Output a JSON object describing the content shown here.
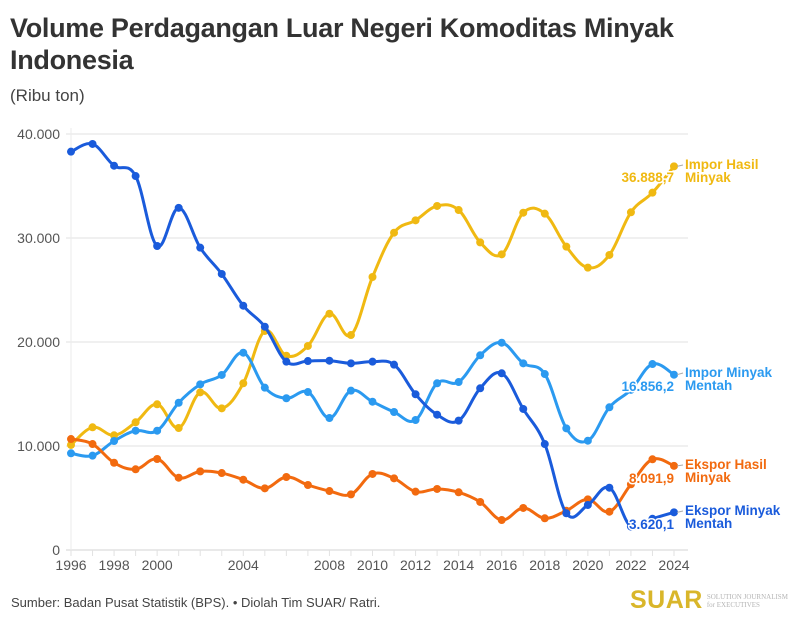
{
  "chart_data": {
    "type": "line",
    "title": "Volume Perdagangan Luar Negeri Komoditas Minyak Indonesia",
    "subtitle": "(Ribu ton)",
    "xlabel": "",
    "ylabel": "",
    "ylim": [
      0,
      40000
    ],
    "xlim": [
      1996,
      2024
    ],
    "grid": true,
    "legend": "right-end labels",
    "y_ticks": [
      {
        "value": 0,
        "label": "0"
      },
      {
        "value": 10000,
        "label": "10.000"
      },
      {
        "value": 20000,
        "label": "20.000"
      },
      {
        "value": 30000,
        "label": "30.000"
      },
      {
        "value": 40000,
        "label": "40.000"
      }
    ],
    "x_tick_years": [
      1996,
      1997,
      1998,
      1999,
      2000,
      2001,
      2002,
      2003,
      2004,
      2005,
      2006,
      2007,
      2008,
      2009,
      2010,
      2011,
      2012,
      2013,
      2014,
      2015,
      2016,
      2017,
      2018,
      2019,
      2020,
      2021,
      2022,
      2023,
      2024
    ],
    "x_tick_labels": [
      {
        "value": 1996,
        "label": "1996"
      },
      {
        "value": 1998,
        "label": "1998"
      },
      {
        "value": 2000,
        "label": "2000"
      },
      {
        "value": 2004,
        "label": "2004"
      },
      {
        "value": 2008,
        "label": "2008"
      },
      {
        "value": 2010,
        "label": "2010"
      },
      {
        "value": 2012,
        "label": "2012"
      },
      {
        "value": 2014,
        "label": "2014"
      },
      {
        "value": 2016,
        "label": "2016"
      },
      {
        "value": 2018,
        "label": "2018"
      },
      {
        "value": 2020,
        "label": "2020"
      },
      {
        "value": 2022,
        "label": "2022"
      },
      {
        "value": 2024,
        "label": "2024"
      }
    ],
    "x": [
      1996,
      1997,
      1998,
      1999,
      2000,
      2001,
      2002,
      2003,
      2004,
      2005,
      2006,
      2007,
      2008,
      2009,
      2010,
      2011,
      2012,
      2013,
      2014,
      2015,
      2016,
      2017,
      2018,
      2019,
      2020,
      2021,
      2022,
      2023,
      2024
    ],
    "series": [
      {
        "name": "Impor Hasil Minyak",
        "label_lines": [
          "Impor Hasil",
          "Minyak"
        ],
        "color": "#f0b912",
        "last_value_label": "36.888,7",
        "values": [
          10100,
          11800,
          11030,
          12280,
          14010,
          11730,
          15160,
          13620,
          16030,
          21060,
          18680,
          19620,
          22720,
          20670,
          26250,
          30510,
          31700,
          33080,
          32690,
          29580,
          28430,
          32430,
          32340,
          29170,
          27150,
          28370,
          32470,
          34360,
          36888.7
        ]
      },
      {
        "name": "Impor Minyak Mentah",
        "label_lines": [
          "Impor Minyak",
          "Mentah"
        ],
        "color": "#2b9af0",
        "last_value_label": "16.856,2",
        "values": [
          9300,
          9070,
          10480,
          11470,
          11470,
          14160,
          15930,
          16830,
          18970,
          15610,
          14590,
          15190,
          12690,
          15320,
          14260,
          13270,
          12500,
          16030,
          16150,
          18720,
          19930,
          17950,
          16920,
          11700,
          10510,
          13720,
          15400,
          17880,
          16856.2
        ]
      },
      {
        "name": "Ekspor Hasil Minyak",
        "label_lines": [
          "Ekspor Hasil",
          "Minyak"
        ],
        "color": "#f26a0f",
        "last_value_label": "8.091,9",
        "values": [
          10670,
          10190,
          8390,
          7760,
          8750,
          6950,
          7560,
          7400,
          6760,
          5930,
          7020,
          6250,
          5670,
          5350,
          7310,
          6890,
          5610,
          5870,
          5550,
          4620,
          2880,
          4040,
          3050,
          3780,
          4870,
          3680,
          6320,
          8720,
          8091.9
        ]
      },
      {
        "name": "Ekspor Minyak Mentah",
        "label_lines": [
          "Ekspor Minyak",
          "Mentah"
        ],
        "color": "#1a5bdb",
        "last_value_label": "3.620,1",
        "values": [
          38300,
          39040,
          36950,
          35960,
          29230,
          32900,
          29070,
          26540,
          23490,
          21470,
          18110,
          18170,
          18200,
          17950,
          18110,
          17820,
          14970,
          13010,
          12440,
          15550,
          16990,
          13560,
          10190,
          3530,
          4330,
          5990,
          2250,
          3000,
          3620.1
        ]
      }
    ]
  },
  "footer": {
    "source": "Sumber: Badan Pusat Statistik (BPS). • Diolah Tim SUAR/ Ratri.",
    "logo_mark": "SUAR",
    "logo_tagline_1": "SOLUTION JOURNALISM",
    "logo_tagline_2": "for EXECUTIVES"
  }
}
